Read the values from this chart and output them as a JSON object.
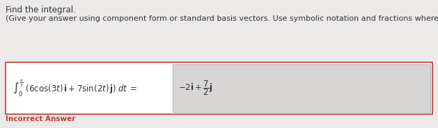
{
  "title": "Find the integral.",
  "subtitle": "(Give your answer using component form or standard basis vectors. Use symbolic notation and fractions where needed.)",
  "incorrect_label": "Incorrect Answer",
  "bg_color": "#ece9e9",
  "box_bg_color": "#ffffff",
  "box_border_color": "#c0392b",
  "answer_box_color": "#d8d5d5",
  "answer_box_border": "#aaaaaa",
  "text_color": "#333333",
  "incorrect_color": "#c0392b",
  "title_fontsize": 8.5,
  "subtitle_fontsize": 8.0,
  "math_fontsize": 8.5,
  "answer_fontsize": 8.5,
  "incorrect_fontsize": 7.5,
  "fig_width": 6.29,
  "fig_height": 1.85,
  "dpi": 100
}
